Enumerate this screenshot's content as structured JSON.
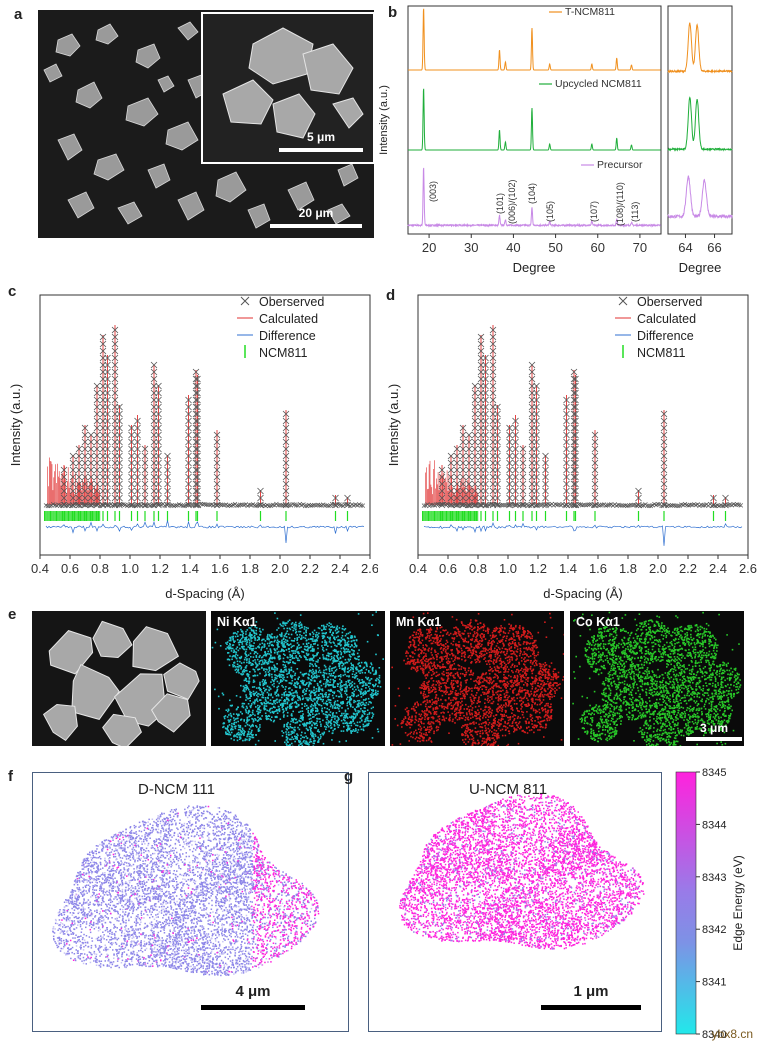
{
  "panels": {
    "a": {
      "label": "a",
      "scale_main": "20 μm",
      "scale_inset": "5 μm"
    },
    "b": {
      "label": "b",
      "ylabel": "Intensity (a.u.)",
      "xlabel": "Degree",
      "xlabel_zoom": "Degree",
      "xticks": [
        "20",
        "30",
        "40",
        "50",
        "60",
        "70"
      ],
      "xticks_zoom": [
        "64",
        "66"
      ],
      "series": [
        {
          "name": "T-NCM811",
          "color": "#f0901e"
        },
        {
          "name": "Upcycled NCM811",
          "color": "#1fae3a"
        },
        {
          "name": "Precursor",
          "color": "#c88ae6"
        }
      ],
      "peaks": [
        "(003)",
        "(101)",
        "(006)/(102)",
        "(104)",
        "(105)",
        "(107)",
        "(108)/(110)",
        "(113)"
      ]
    },
    "c": {
      "label": "c",
      "ylabel": "Intensity (a.u.)",
      "xlabel": "d-Spacing (Å)",
      "xticks": [
        "0.4",
        "0.6",
        "0.8",
        "1.0",
        "1.2",
        "1.4",
        "1.6",
        "1.8",
        "2.0",
        "2.2",
        "2.4",
        "2.6"
      ],
      "legend": [
        "Oberserved",
        "Calculated",
        "Difference",
        "NCM811"
      ]
    },
    "d": {
      "label": "d",
      "ylabel": "Intensity (a.u.)",
      "xlabel": "d-Spacing (Å)",
      "xticks": [
        "0.4",
        "0.6",
        "0.8",
        "1.0",
        "1.2",
        "1.4",
        "1.6",
        "1.8",
        "2.0",
        "2.2",
        "2.4",
        "2.6"
      ],
      "legend": [
        "Oberserved",
        "Calculated",
        "Difference",
        "NCM811"
      ]
    },
    "e": {
      "label": "e",
      "maps": [
        "Ni Kα1",
        "Mn Kα1",
        "Co Kα1"
      ],
      "scale": "3 μm"
    },
    "f": {
      "label": "f",
      "title": "D-NCM 111",
      "scale": "4 μm"
    },
    "g": {
      "label": "g",
      "title": "U-NCM 811",
      "scale": "1 μm"
    },
    "colorbar": {
      "label": "Edge Energy (eV)",
      "ticks": [
        "8345",
        "8344",
        "8343",
        "8342",
        "8341",
        "8340"
      ]
    }
  },
  "colors": {
    "observed": "#555555",
    "calculated": "#e03030",
    "difference": "#2f6fd0",
    "ncm": "#22dd22",
    "ni": "#22c4cc",
    "mn": "#d21c1c",
    "co": "#28c828",
    "magenta": "#ff22dd",
    "violet": "#8d86e8"
  },
  "watermark": "ybx8.cn"
}
